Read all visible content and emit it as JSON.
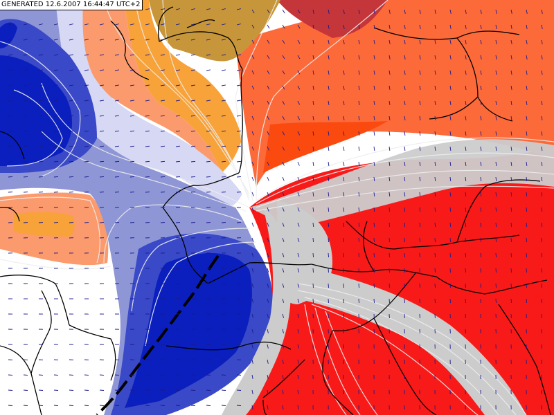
{
  "header": {
    "generated_label": "GENERATED 12.6.2007 16:44:47 UTC+2"
  },
  "map": {
    "kind": "meteorological field map with wind vectors",
    "colors": {
      "deep_blue": "#0a1fbd",
      "mid_blue": "#3a49c8",
      "light_blue": "#8f96d6",
      "pale_blue": "#d6d8f4",
      "white": "#ffffff",
      "light_orange": "#fb9a6c",
      "orange": "#f8a23a",
      "olive_gold": "#c8963a",
      "dark_red": "#c5363a",
      "red_orange": "#fd6a3a",
      "deep_orange": "#fb4a10",
      "red": "#f81a18",
      "gray_band": "#cccccc",
      "isoline": "#eeeeee",
      "border": "#000000",
      "wind_arrow": "#1a1a8c",
      "front": "#000000"
    }
  }
}
